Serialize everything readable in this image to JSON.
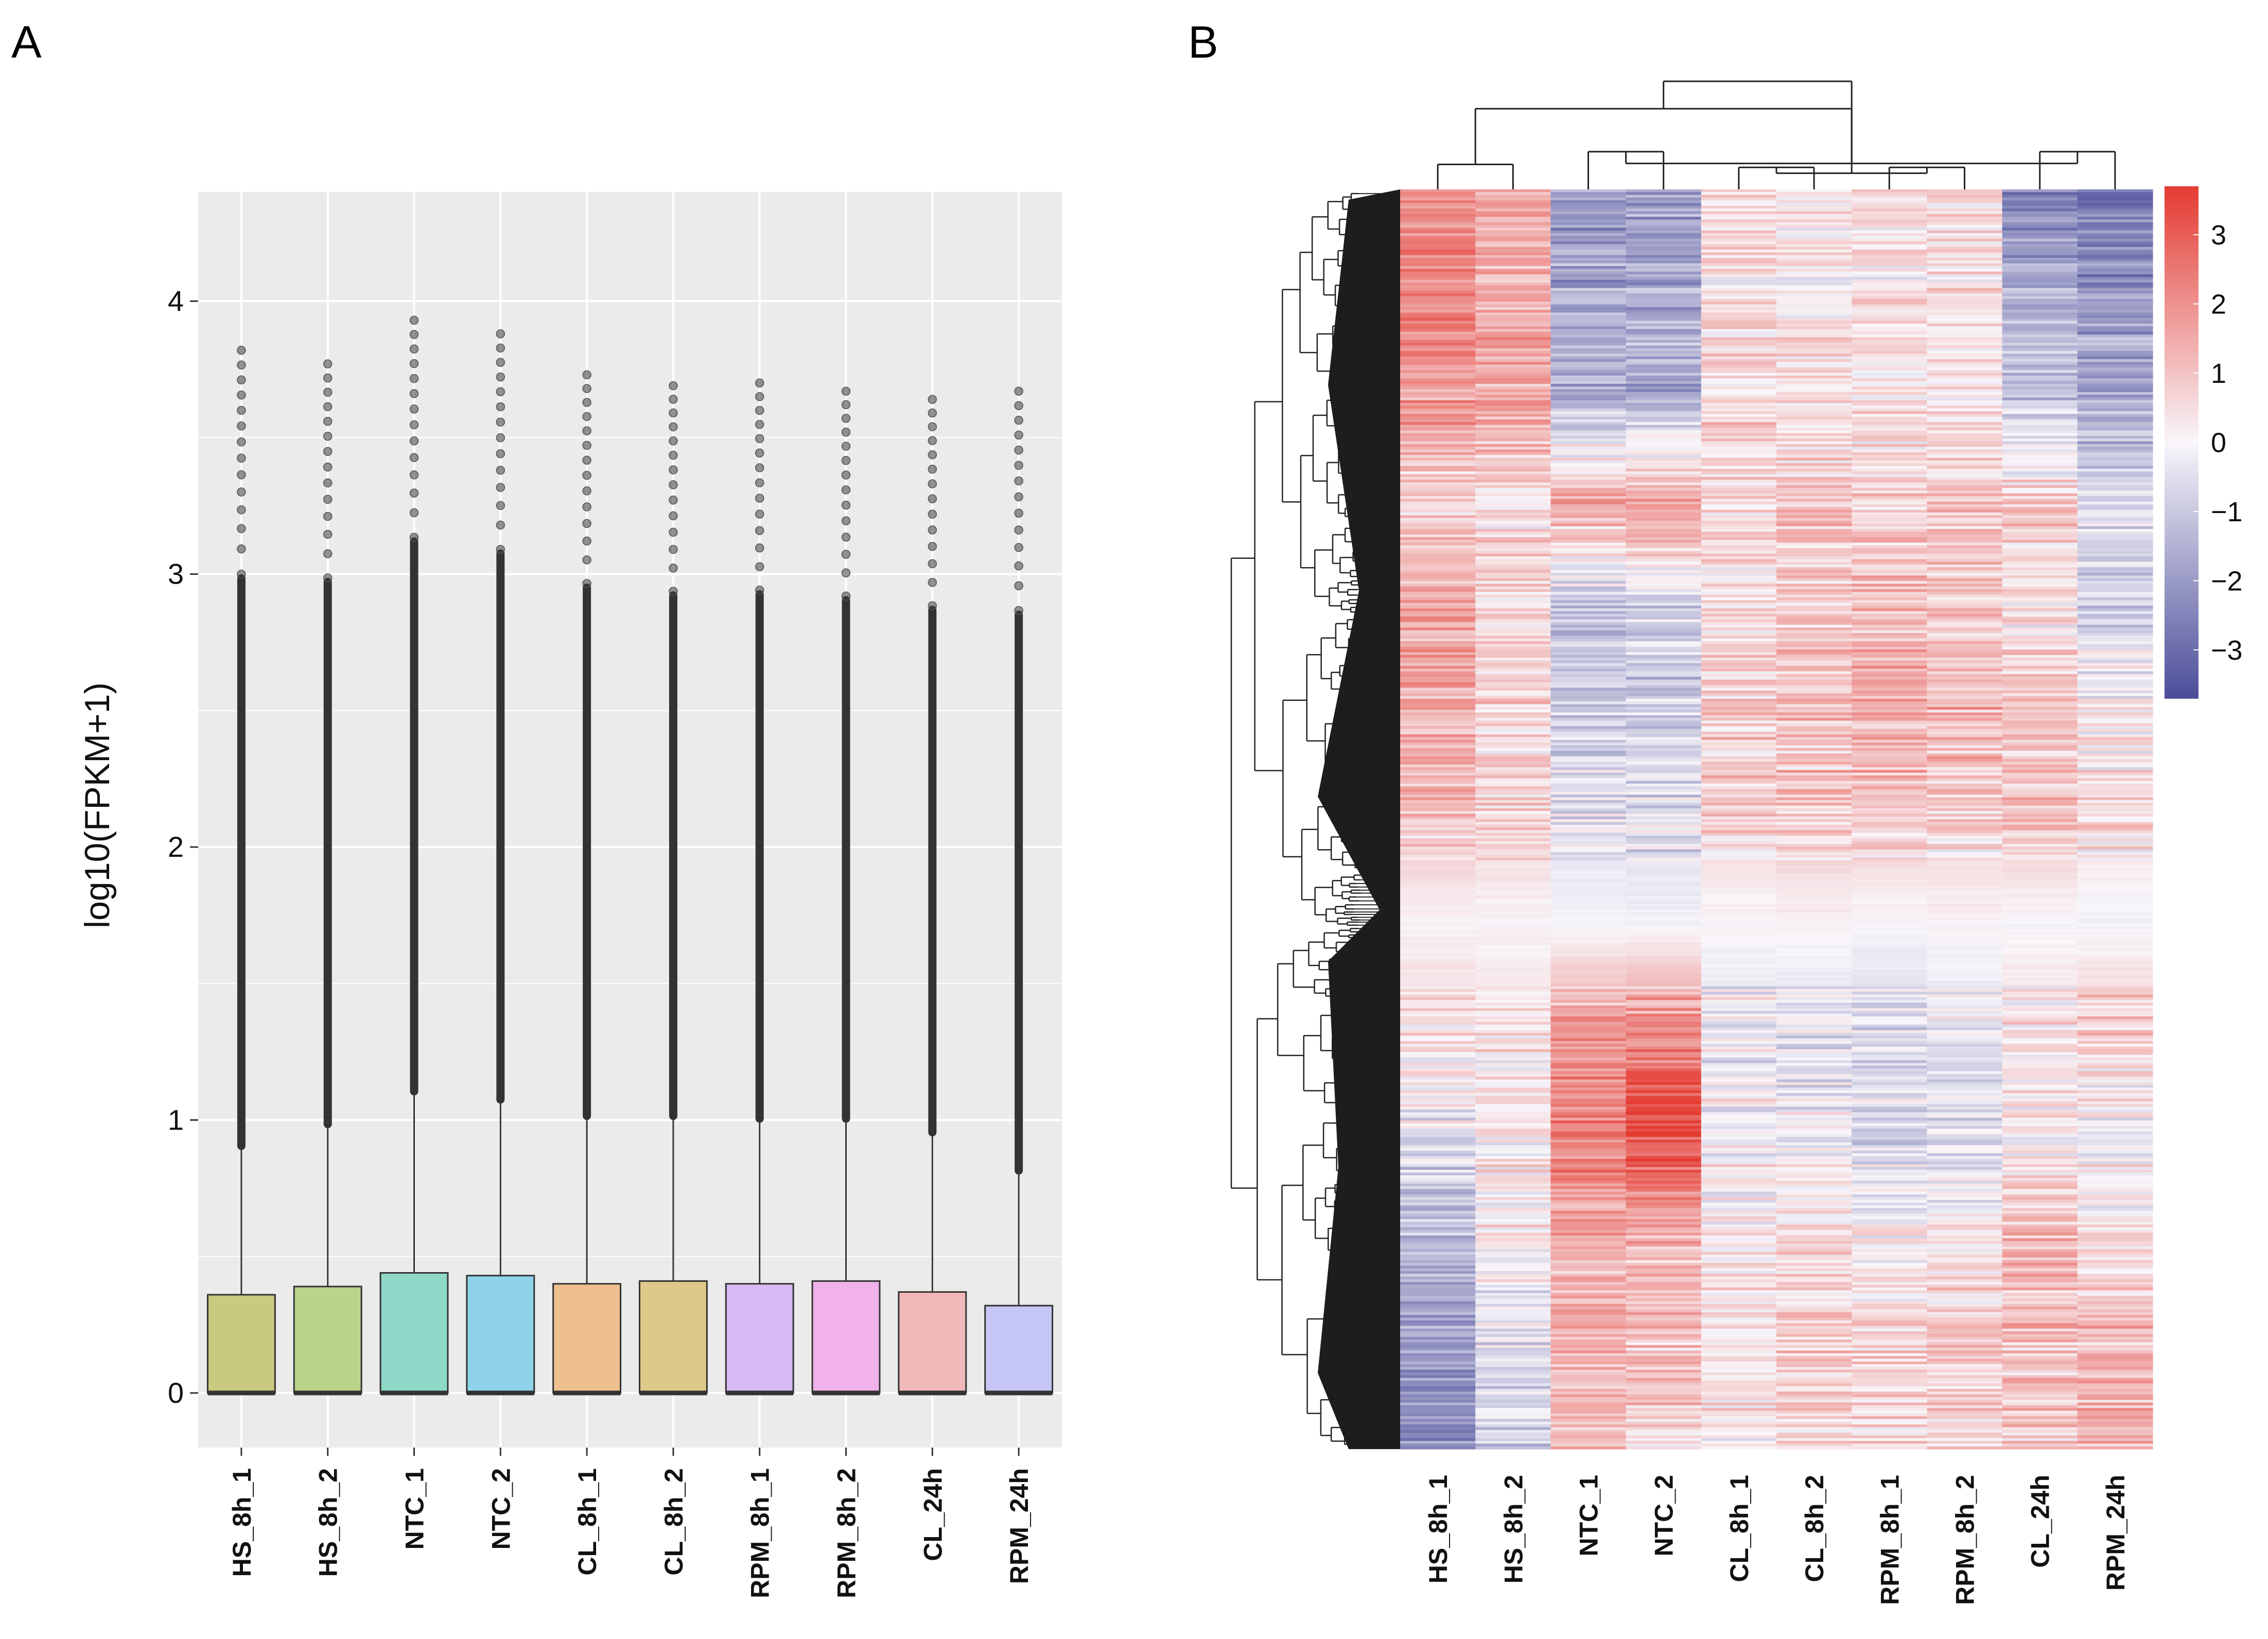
{
  "panels": {
    "a": {
      "label": "A"
    },
    "b": {
      "label": "B"
    }
  },
  "chart_data": [
    {
      "type": "box",
      "panel": "A",
      "ylabel": "log10(FPKM+1)",
      "ylim": [
        -0.2,
        4.4
      ],
      "yticks": [
        0,
        1,
        2,
        3,
        4
      ],
      "grid": true,
      "categories": [
        "HS_8h_1",
        "HS_8h_2",
        "NTC_1",
        "NTC_2",
        "CL_8h_1",
        "CL_8h_2",
        "RPM_8h_1",
        "RPM_8h_2",
        "CL_24h",
        "RPM_24h"
      ],
      "boxes": [
        {
          "q1": 0,
          "median": 0,
          "q3": 0.36,
          "whisker_high": 0.89,
          "outlier_max": 3.82,
          "color": "#c9c97f"
        },
        {
          "q1": 0,
          "median": 0,
          "q3": 0.39,
          "whisker_high": 0.97,
          "outlier_max": 3.77,
          "color": "#b9d48a"
        },
        {
          "q1": 0,
          "median": 0,
          "q3": 0.44,
          "whisker_high": 1.09,
          "outlier_max": 3.93,
          "color": "#8fd9c8"
        },
        {
          "q1": 0,
          "median": 0,
          "q3": 0.43,
          "whisker_high": 1.06,
          "outlier_max": 3.88,
          "color": "#8fd3ea"
        },
        {
          "q1": 0,
          "median": 0,
          "q3": 0.4,
          "whisker_high": 1.0,
          "outlier_max": 3.73,
          "color": "#eec08f"
        },
        {
          "q1": 0,
          "median": 0,
          "q3": 0.41,
          "whisker_high": 1.0,
          "outlier_max": 3.69,
          "color": "#dfc98a"
        },
        {
          "q1": 0,
          "median": 0,
          "q3": 0.4,
          "whisker_high": 0.99,
          "outlier_max": 3.7,
          "color": "#d7b9f3"
        },
        {
          "q1": 0,
          "median": 0,
          "q3": 0.41,
          "whisker_high": 0.99,
          "outlier_max": 3.67,
          "color": "#f0b2e8"
        },
        {
          "q1": 0,
          "median": 0,
          "q3": 0.37,
          "whisker_high": 0.94,
          "outlier_max": 3.64,
          "color": "#f0b8b8"
        },
        {
          "q1": 0,
          "median": 0,
          "q3": 0.32,
          "whisker_high": 0.8,
          "outlier_max": 3.67,
          "color": "#c5c6f5"
        }
      ]
    },
    {
      "type": "heatmap",
      "panel": "B",
      "columns": [
        "HS_8h_1",
        "HS_8h_2",
        "NTC_1",
        "NTC_2",
        "CL_8h_1",
        "CL_8h_2",
        "RPM_8h_1",
        "RPM_8h_2",
        "CL_24h",
        "RPM_24h"
      ],
      "row_profile": [
        [
          2,
          1.5,
          -2,
          -2,
          0.5,
          0.3,
          0.4,
          0.5,
          -2.5,
          -3
        ],
        [
          2.2,
          1.3,
          -1.8,
          -1.5,
          0.3,
          0.2,
          0.3,
          0.4,
          -1.5,
          -2
        ],
        [
          1.8,
          1.6,
          -1.5,
          -1.7,
          0.6,
          0.4,
          0.2,
          0.3,
          -1.2,
          -1.8
        ],
        [
          0.5,
          0.3,
          1.5,
          1.8,
          0.6,
          0.8,
          0.7,
          0.9,
          0.8,
          -0.5
        ],
        [
          1.8,
          0.8,
          -1.2,
          -0.8,
          0.4,
          0.9,
          1.2,
          1.0,
          0.2,
          -0.8
        ],
        [
          1.5,
          0.6,
          -0.8,
          -1.0,
          0.9,
          1.1,
          1.4,
          1.3,
          1.0,
          0.2
        ],
        [
          0.9,
          0.6,
          -0.4,
          -0.6,
          0.6,
          0.8,
          0.8,
          0.7,
          0.9,
          0.4
        ],
        [
          0.1,
          0.1,
          -0.1,
          -0.1,
          0,
          0.1,
          0,
          0.1,
          0,
          -0.1
        ],
        [
          0.6,
          0.4,
          1.8,
          2.2,
          -0.3,
          -0.5,
          -0.6,
          -0.4,
          0.5,
          0.9
        ],
        [
          -0.4,
          0.3,
          2.5,
          3.5,
          0,
          -0.3,
          -0.6,
          -0.5,
          0.2,
          -0.2
        ],
        [
          -1.2,
          0.2,
          1.5,
          1.2,
          0.3,
          0.5,
          0.2,
          0.4,
          1.3,
          0.6
        ],
        [
          -2.2,
          -0.5,
          1.2,
          1.0,
          0.4,
          0.8,
          0.5,
          0.8,
          1.0,
          1.2
        ],
        [
          -2.5,
          -0.8,
          1.0,
          0.8,
          0.2,
          0.5,
          0.4,
          0.6,
          0.6,
          1.4
        ]
      ],
      "row_count": 460,
      "colorbar": {
        "range": [
          -3.7,
          3.7
        ],
        "ticks": [
          "3",
          "2",
          "1",
          "0",
          "−1",
          "−2",
          "−3"
        ],
        "tick_values": [
          3,
          2,
          1,
          0,
          -1,
          -2,
          -3
        ],
        "low_color": "#4b4d9a",
        "mid_color": "#f8f6fa",
        "high_color": "#e43b32"
      },
      "col_dendrogram": [
        [
          0,
          1
        ],
        [
          2,
          3
        ],
        [
          4,
          5
        ],
        [
          6,
          7
        ],
        [
          8,
          9
        ],
        [
          12,
          13
        ],
        [
          11,
          14
        ],
        [
          10,
          15
        ],
        [
          16,
          17
        ]
      ],
      "row_dendrogram": "clustered"
    }
  ]
}
